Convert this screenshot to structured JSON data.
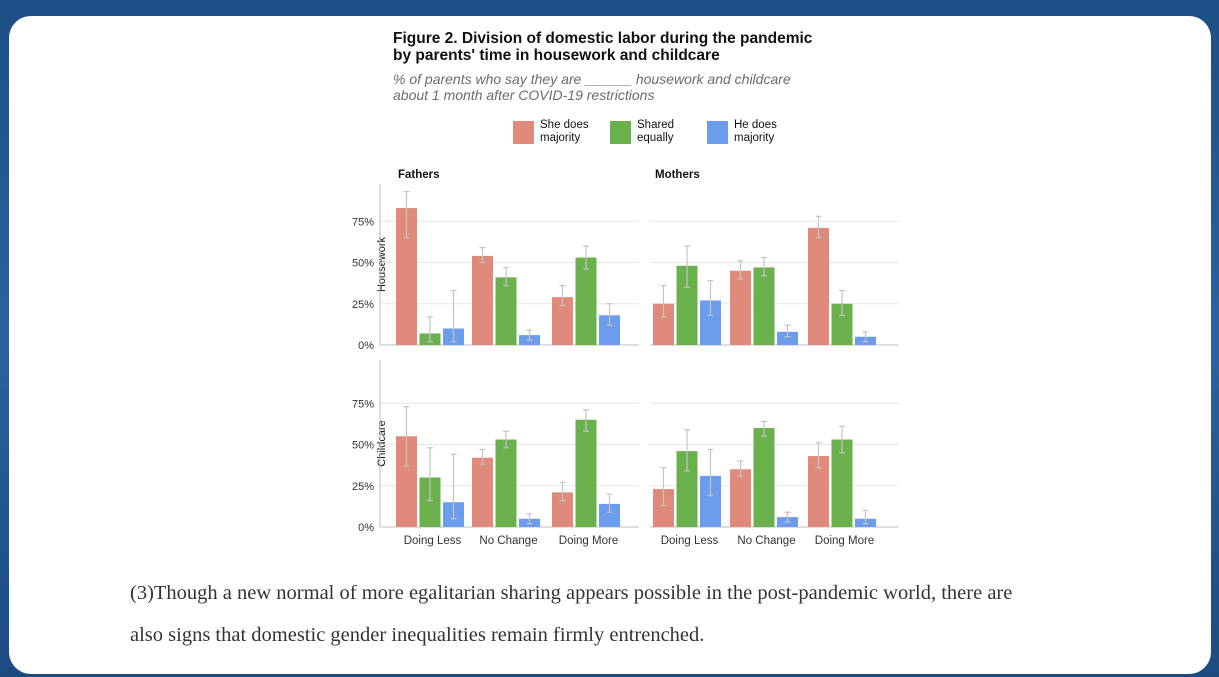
{
  "figure": {
    "title_line1": "Figure 2. Division of domestic labor during the pandemic",
    "title_line2": "by parents' time in housework and childcare",
    "subtitle_line1": "% of parents who say they are ______ housework and childcare",
    "subtitle_line2": "about 1 month after COVID-19 restrictions"
  },
  "legend": [
    {
      "label": "She does majority",
      "color": "#e08a7c"
    },
    {
      "label": "Shared equally",
      "color": "#6ab04c"
    },
    {
      "label": "He does majority",
      "color": "#6c9cec"
    }
  ],
  "chart_data": {
    "type": "bar",
    "facet_columns": [
      "Fathers",
      "Mothers"
    ],
    "facet_rows": [
      "Housework",
      "Childcare"
    ],
    "categories": [
      "Doing Less",
      "No Change",
      "Doing More"
    ],
    "series_colors": [
      "#e08a7c",
      "#6ab04c",
      "#6c9cec"
    ],
    "y_ticks": [
      "0%",
      "25%",
      "50%",
      "75%"
    ],
    "ylim": [
      0,
      0.95
    ],
    "grid": true,
    "legend_position": "top",
    "panels": [
      {
        "column": "Fathers",
        "row": "Housework",
        "values": [
          [
            0.83,
            0.07,
            0.1
          ],
          [
            0.54,
            0.41,
            0.06
          ],
          [
            0.29,
            0.53,
            0.18
          ]
        ],
        "errors": [
          [
            [
              0.65,
              0.93
            ],
            [
              0.02,
              0.17
            ],
            [
              0.02,
              0.33
            ]
          ],
          [
            [
              0.5,
              0.59
            ],
            [
              0.36,
              0.47
            ],
            [
              0.03,
              0.09
            ]
          ],
          [
            [
              0.24,
              0.36
            ],
            [
              0.46,
              0.6
            ],
            [
              0.12,
              0.25
            ]
          ]
        ]
      },
      {
        "column": "Mothers",
        "row": "Housework",
        "values": [
          [
            0.25,
            0.48,
            0.27
          ],
          [
            0.45,
            0.47,
            0.08
          ],
          [
            0.71,
            0.25,
            0.05
          ]
        ],
        "errors": [
          [
            [
              0.17,
              0.36
            ],
            [
              0.35,
              0.6
            ],
            [
              0.18,
              0.39
            ]
          ],
          [
            [
              0.4,
              0.51
            ],
            [
              0.42,
              0.53
            ],
            [
              0.05,
              0.12
            ]
          ],
          [
            [
              0.65,
              0.78
            ],
            [
              0.18,
              0.33
            ],
            [
              0.02,
              0.08
            ]
          ]
        ]
      },
      {
        "column": "Fathers",
        "row": "Childcare",
        "values": [
          [
            0.55,
            0.3,
            0.15
          ],
          [
            0.42,
            0.53,
            0.05
          ],
          [
            0.21,
            0.65,
            0.14
          ]
        ],
        "errors": [
          [
            [
              0.37,
              0.73
            ],
            [
              0.16,
              0.48
            ],
            [
              0.05,
              0.44
            ]
          ],
          [
            [
              0.38,
              0.47
            ],
            [
              0.48,
              0.58
            ],
            [
              0.02,
              0.08
            ]
          ],
          [
            [
              0.16,
              0.27
            ],
            [
              0.58,
              0.71
            ],
            [
              0.09,
              0.2
            ]
          ]
        ]
      },
      {
        "column": "Mothers",
        "row": "Childcare",
        "values": [
          [
            0.23,
            0.46,
            0.31
          ],
          [
            0.35,
            0.6,
            0.06
          ],
          [
            0.43,
            0.53,
            0.05
          ]
        ],
        "errors": [
          [
            [
              0.13,
              0.36
            ],
            [
              0.34,
              0.59
            ],
            [
              0.19,
              0.47
            ]
          ],
          [
            [
              0.31,
              0.4
            ],
            [
              0.55,
              0.64
            ],
            [
              0.03,
              0.09
            ]
          ],
          [
            [
              0.36,
              0.51
            ],
            [
              0.45,
              0.61
            ],
            [
              0.02,
              0.1
            ]
          ]
        ]
      }
    ]
  },
  "paragraph": {
    "line1": "(3)Though a new normal of more egalitarian sharing appears possible in the post-pandemic world, there are",
    "line2": "also signs that domestic gender inequalities remain firmly entrenched."
  }
}
